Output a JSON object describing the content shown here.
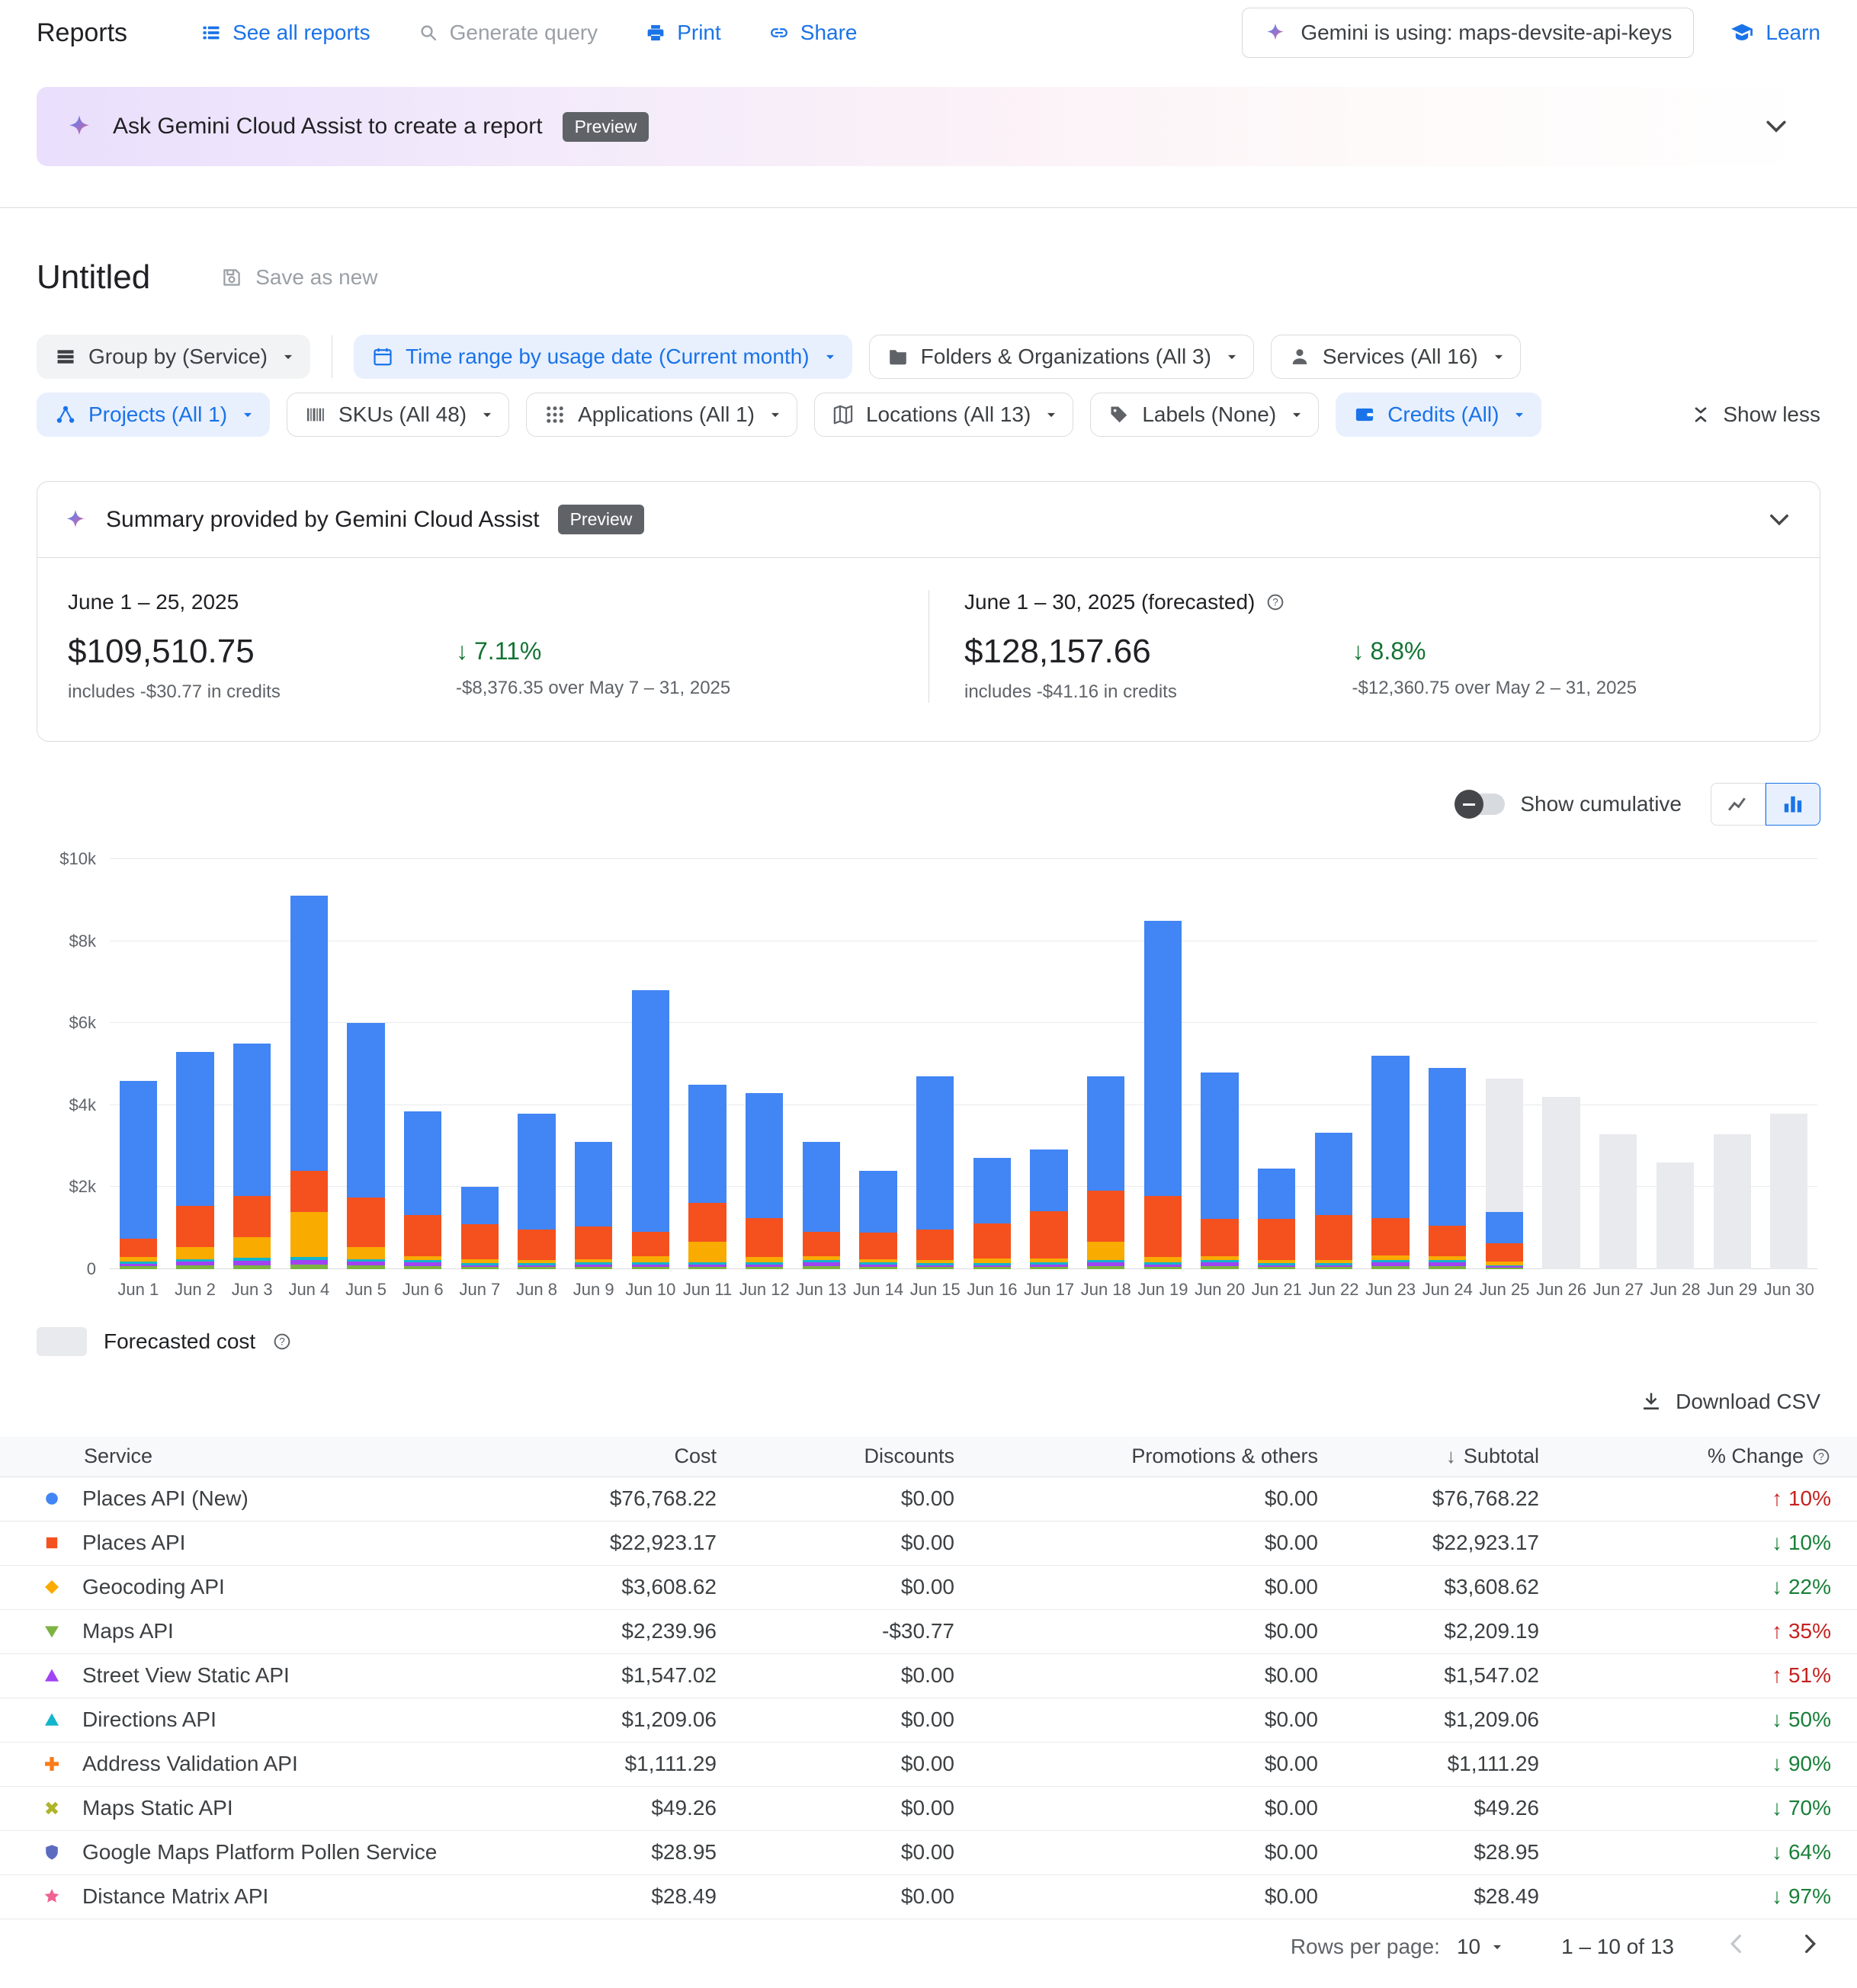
{
  "ui_colors": {
    "link_blue": "#1a73e8",
    "positive_green": "#188038",
    "negative_red": "#c5221f",
    "forecast_gray": "#e8eaed"
  },
  "topbar": {
    "title": "Reports",
    "links": [
      {
        "label": "See all reports",
        "icon": "list-icon",
        "disabled": false
      },
      {
        "label": "Generate query",
        "icon": "query-icon",
        "disabled": true
      },
      {
        "label": "Print",
        "icon": "print-icon",
        "disabled": false
      },
      {
        "label": "Share",
        "icon": "share-icon",
        "disabled": false
      }
    ],
    "gemini_status": "Gemini is using: maps-devsite-api-keys",
    "learn_label": "Learn"
  },
  "banner": {
    "label": "Ask Gemini Cloud Assist to create a report",
    "badge": "Preview"
  },
  "report": {
    "title": "Untitled",
    "save_label": "Save as new"
  },
  "filters": {
    "row1": [
      {
        "label": "Group by (Service)",
        "icon": "group-by-icon",
        "style": "gray"
      },
      {
        "label": "Time range by usage date (Current month)",
        "icon": "calendar-icon",
        "style": "blue"
      },
      {
        "label": "Folders & Organizations (All 3)",
        "icon": "folder-icon",
        "style": "plain"
      },
      {
        "label": "Services (All 16)",
        "icon": "services-icon",
        "style": "plain"
      }
    ],
    "row2": [
      {
        "label": "Projects (All 1)",
        "icon": "projects-icon",
        "style": "blue"
      },
      {
        "label": "SKUs (All 48)",
        "icon": "barcode-icon",
        "style": "plain"
      },
      {
        "label": "Applications (All 1)",
        "icon": "apps-grid-icon",
        "style": "plain"
      },
      {
        "label": "Locations (All 13)",
        "icon": "map-icon",
        "style": "plain"
      },
      {
        "label": "Labels (None)",
        "icon": "label-icon",
        "style": "plain"
      },
      {
        "label": "Credits (All)",
        "icon": "credits-icon",
        "style": "blue"
      }
    ],
    "show_less": "Show less"
  },
  "summary": {
    "title": "Summary provided by Gemini Cloud Assist",
    "badge": "Preview",
    "current": {
      "period": "June 1 – 25, 2025",
      "amount": "$109,510.75",
      "credits_note": "includes -$30.77 in credits",
      "delta": "7.11%",
      "delta_note": "-$8,376.35 over May 7 – 31, 2025"
    },
    "forecast": {
      "period": "June 1 – 30, 2025 (forecasted)",
      "amount": "$128,157.66",
      "credits_note": "includes -$41.16 in credits",
      "delta": "8.8%",
      "delta_note": "-$12,360.75 over May 2 – 31, 2025"
    }
  },
  "chart_controls": {
    "cumulative_label": "Show cumulative"
  },
  "chart_data": {
    "type": "bar",
    "stacked": true,
    "unit": "USD thousands per day",
    "ylim_k": [
      0,
      10
    ],
    "y_tick_labels": [
      "$10k",
      "$8k",
      "$6k",
      "$4k",
      "$2k",
      "0"
    ],
    "y_tick_values_k": [
      10,
      8,
      6,
      4,
      2,
      0
    ],
    "grid": true,
    "x": [
      "Jun 1",
      "Jun 2",
      "Jun 3",
      "Jun 4",
      "Jun 5",
      "Jun 6",
      "Jun 7",
      "Jun 8",
      "Jun 9",
      "Jun 10",
      "Jun 11",
      "Jun 12",
      "Jun 13",
      "Jun 14",
      "Jun 15",
      "Jun 16",
      "Jun 17",
      "Jun 18",
      "Jun 19",
      "Jun 20",
      "Jun 21",
      "Jun 22",
      "Jun 23",
      "Jun 24",
      "Jun 25",
      "Jun 26",
      "Jun 27",
      "Jun 28",
      "Jun 29",
      "Jun 30"
    ],
    "series": [
      {
        "name": "Maps API",
        "color": "#7cb342",
        "values": [
          0.08,
          0.1,
          0.1,
          0.12,
          0.1,
          0.08,
          0.05,
          0.05,
          0.06,
          0.06,
          0.06,
          0.06,
          0.08,
          0.06,
          0.05,
          0.05,
          0.06,
          0.08,
          0.06,
          0.08,
          0.05,
          0.05,
          0.08,
          0.08,
          0.04,
          0,
          0,
          0,
          0,
          0
        ]
      },
      {
        "name": "Street View Static API",
        "color": "#a142f4",
        "values": [
          0.06,
          0.08,
          0.1,
          0.1,
          0.08,
          0.08,
          0.05,
          0.05,
          0.06,
          0.06,
          0.06,
          0.06,
          0.08,
          0.06,
          0.05,
          0.05,
          0.06,
          0.08,
          0.06,
          0.08,
          0.05,
          0.05,
          0.08,
          0.08,
          0.03,
          0,
          0,
          0,
          0,
          0
        ]
      },
      {
        "name": "Directions API",
        "color": "#12b5cb",
        "values": [
          0.05,
          0.06,
          0.08,
          0.08,
          0.06,
          0.06,
          0.04,
          0.04,
          0.05,
          0.05,
          0.05,
          0.05,
          0.06,
          0.05,
          0.04,
          0.04,
          0.05,
          0.06,
          0.05,
          0.06,
          0.04,
          0.04,
          0.06,
          0.06,
          0.03,
          0,
          0,
          0,
          0,
          0
        ]
      },
      {
        "name": "Geocoding API",
        "color": "#f9ab00",
        "values": [
          0.1,
          0.3,
          0.5,
          1.1,
          0.3,
          0.1,
          0.1,
          0.08,
          0.08,
          0.15,
          0.5,
          0.12,
          0.1,
          0.08,
          0.08,
          0.12,
          0.1,
          0.45,
          0.12,
          0.1,
          0.08,
          0.08,
          0.12,
          0.1,
          0.08,
          0,
          0,
          0,
          0,
          0
        ]
      },
      {
        "name": "Places API",
        "color": "#f4511e",
        "values": [
          0.45,
          1.0,
          1.0,
          1.0,
          1.2,
          1.0,
          0.85,
          0.75,
          0.8,
          0.6,
          0.95,
          0.95,
          0.6,
          0.65,
          0.75,
          0.85,
          1.15,
          1.25,
          1.5,
          0.9,
          1.0,
          1.1,
          0.9,
          0.75,
          0.45,
          0,
          0,
          0,
          0,
          0
        ]
      },
      {
        "name": "Places API (New)",
        "color": "#4285f4",
        "values": [
          3.86,
          3.76,
          3.72,
          6.7,
          4.26,
          2.53,
          0.91,
          2.83,
          2.05,
          5.88,
          2.88,
          3.06,
          2.18,
          1.5,
          3.73,
          1.6,
          1.5,
          2.78,
          6.71,
          3.58,
          1.23,
          2.0,
          3.96,
          3.83,
          0.77,
          0,
          0,
          0,
          0,
          0
        ]
      },
      {
        "name": "Forecasted cost",
        "color": "#e8eaed",
        "values": [
          0,
          0,
          0,
          0,
          0,
          0,
          0,
          0,
          0,
          0,
          0,
          0,
          0,
          0,
          0,
          0,
          0,
          0,
          0,
          0,
          0,
          0,
          0,
          0,
          3.25,
          4.2,
          3.3,
          2.6,
          3.3,
          3.8
        ]
      }
    ]
  },
  "forecast_legend": "Forecasted cost",
  "download_csv": "Download CSV",
  "table": {
    "columns": [
      "Service",
      "Cost",
      "Discounts",
      "Promotions & others",
      "Subtotal",
      "% Change"
    ],
    "rows": [
      {
        "service": "Places API (New)",
        "marker": "circle",
        "color": "#4285f4",
        "cost": "$76,768.22",
        "discounts": "$0.00",
        "promotions": "$0.00",
        "subtotal": "$76,768.22",
        "change": "10%",
        "trend": "up"
      },
      {
        "service": "Places API",
        "marker": "square",
        "color": "#f4511e",
        "cost": "$22,923.17",
        "discounts": "$0.00",
        "promotions": "$0.00",
        "subtotal": "$22,923.17",
        "change": "10%",
        "trend": "down"
      },
      {
        "service": "Geocoding API",
        "marker": "diamond",
        "color": "#f9ab00",
        "cost": "$3,608.62",
        "discounts": "$0.00",
        "promotions": "$0.00",
        "subtotal": "$3,608.62",
        "change": "22%",
        "trend": "down"
      },
      {
        "service": "Maps API",
        "marker": "triangle-down",
        "color": "#7cb342",
        "cost": "$2,239.96",
        "discounts": "-$30.77",
        "promotions": "$0.00",
        "subtotal": "$2,209.19",
        "change": "35%",
        "trend": "up"
      },
      {
        "service": "Street View Static API",
        "marker": "triangle-up",
        "color": "#a142f4",
        "cost": "$1,547.02",
        "discounts": "$0.00",
        "promotions": "$0.00",
        "subtotal": "$1,547.02",
        "change": "51%",
        "trend": "up"
      },
      {
        "service": "Directions API",
        "marker": "triangle-up",
        "color": "#12b5cb",
        "cost": "$1,209.06",
        "discounts": "$0.00",
        "promotions": "$0.00",
        "subtotal": "$1,209.06",
        "change": "50%",
        "trend": "down"
      },
      {
        "service": "Address Validation API",
        "marker": "plus",
        "color": "#fa7b17",
        "cost": "$1,111.29",
        "discounts": "$0.00",
        "promotions": "$0.00",
        "subtotal": "$1,111.29",
        "change": "90%",
        "trend": "down"
      },
      {
        "service": "Maps Static API",
        "marker": "x",
        "color": "#afb42b",
        "cost": "$49.26",
        "discounts": "$0.00",
        "promotions": "$0.00",
        "subtotal": "$49.26",
        "change": "70%",
        "trend": "down"
      },
      {
        "service": "Google Maps Platform Pollen Service",
        "marker": "shield",
        "color": "#5c6bc0",
        "cost": "$28.95",
        "discounts": "$0.00",
        "promotions": "$0.00",
        "subtotal": "$28.95",
        "change": "64%",
        "trend": "down"
      },
      {
        "service": "Distance Matrix API",
        "marker": "star",
        "color": "#f06292",
        "cost": "$28.49",
        "discounts": "$0.00",
        "promotions": "$0.00",
        "subtotal": "$28.49",
        "change": "97%",
        "trend": "down"
      }
    ]
  },
  "pagination": {
    "rows_per_page_label": "Rows per page:",
    "rows_per_page": "10",
    "range": "1 – 10 of 13"
  }
}
